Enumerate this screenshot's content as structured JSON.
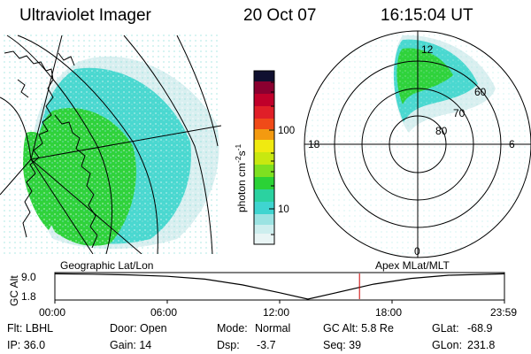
{
  "header": {
    "title": "Ultraviolet Imager",
    "date": "20 Oct 07",
    "time": "16:15:04 UT"
  },
  "left_panel": {
    "caption": "Geographic Lat/Lon"
  },
  "right_panel": {
    "caption": "Apex MLat/MLT",
    "mlt_labels": {
      "top": "12",
      "left": "18",
      "right": "6",
      "bottom": "0"
    },
    "lat_labels": [
      "60",
      "70",
      "80"
    ]
  },
  "colorbar": {
    "axis_label": "photon cm",
    "exp_1": "-2",
    "mid_char": "s",
    "exp_2": "-1",
    "ticks": [
      "100",
      "10"
    ]
  },
  "timeline": {
    "ylabel_main": "GC Alt",
    "y_top": "9.0",
    "y_bottom": "1.8",
    "x_ticks": [
      "00:00",
      "06:00",
      "12:00",
      "18:00",
      "23:59"
    ]
  },
  "info": {
    "flt": "Flt: LBHL",
    "ip": "IP: 36.0",
    "door": "Door: Open",
    "gain": "Gain: 14",
    "mode_key": "Mode:",
    "mode_val": "Normal",
    "dsp_key": "Dsp:",
    "dsp_val": "-3.7",
    "gcalt": "GC Alt: 5.8 Re",
    "seq": "Seq: 39",
    "glat_key": "GLat:",
    "glat_val": "-68.9",
    "glon_key": "GLon:",
    "glon_val": "231.8"
  },
  "chart_data": {
    "type": "line",
    "title": "",
    "xlabel": "",
    "ylabel": "GC Alt",
    "x": [
      "00:00",
      "02:00",
      "04:00",
      "06:00",
      "08:00",
      "10:00",
      "12:00",
      "13:30",
      "15:00",
      "17:00",
      "19:00",
      "21:00",
      "23:59"
    ],
    "y": [
      8.9,
      8.8,
      8.6,
      8.2,
      7.4,
      5.8,
      3.6,
      1.8,
      3.6,
      6.0,
      7.6,
      8.5,
      8.9
    ],
    "ylim": [
      1.8,
      9.0
    ],
    "current_time": "16:15:04",
    "colorbar_scale": "log",
    "colorbar_ticks": [
      10,
      100
    ],
    "colors": {
      "low": "#d8f0f0",
      "cyan": "#3fd5d0",
      "green": "#2bd236",
      "yellow": "#f0ea10",
      "orange": "#f39a10",
      "red": "#dd2222",
      "crimson": "#8a0030",
      "top": "#101030",
      "marker": "#cc0000"
    }
  }
}
